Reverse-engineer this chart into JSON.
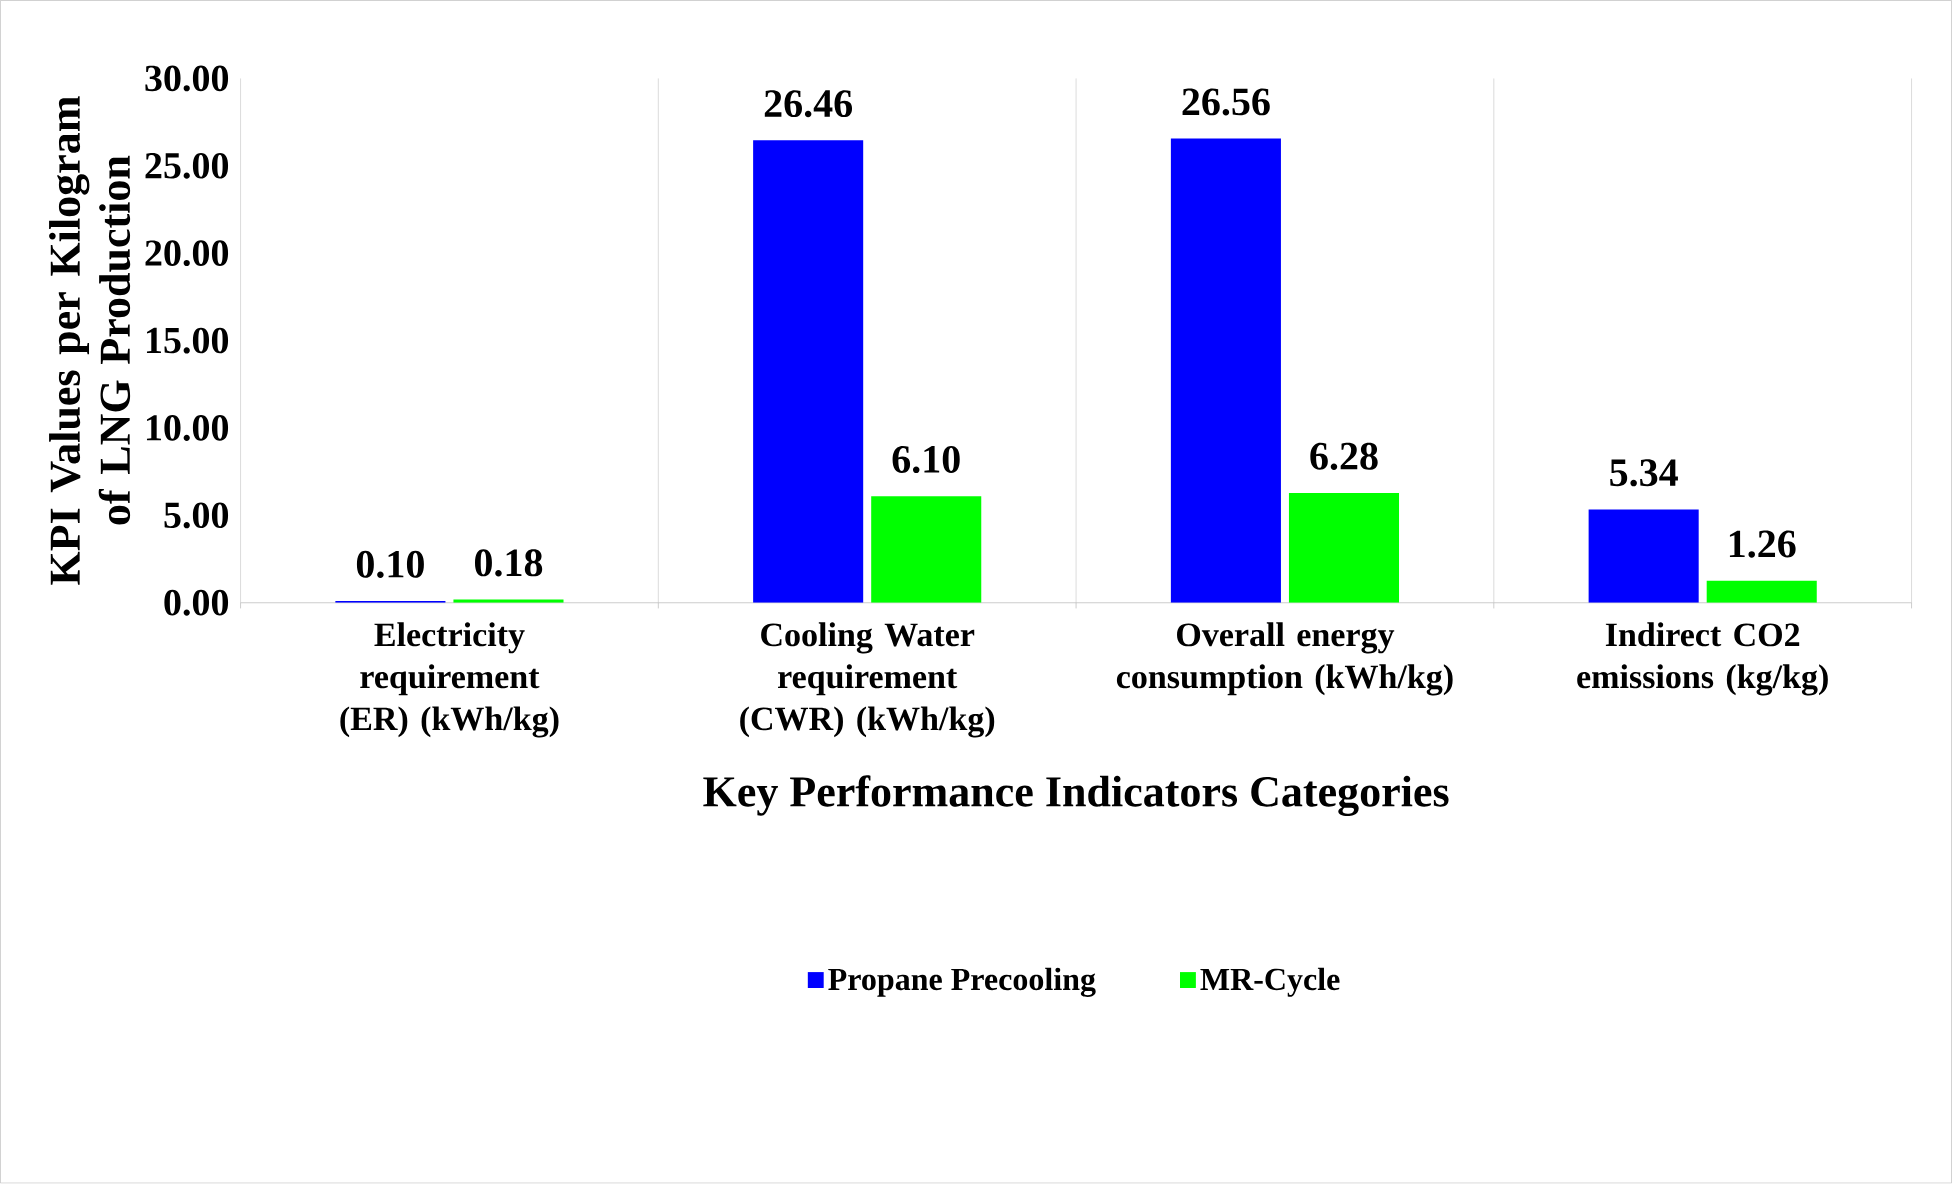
{
  "chart_data": {
    "type": "bar",
    "xlabel": "Key Performance Indicators Categories",
    "ylabel": "KPI Values per Kilogram of LNG Production",
    "categories": [
      "Electricity requirement (ER) (kWh/kg)",
      "Cooling Water requirement (CWR) (kWh/kg)",
      "Overall energy consumption (kWh/kg)",
      "Indirect CO2 emissions (kg/kg)"
    ],
    "series": [
      {
        "name": "Propane Precooling",
        "color": "#0000ff",
        "values": [
          0.1,
          26.46,
          26.56,
          5.34
        ],
        "value_labels": [
          "0.10",
          "26.46",
          "26.56",
          "5.34"
        ]
      },
      {
        "name": "MR-Cycle",
        "color": "#00ff00",
        "values": [
          0.18,
          6.1,
          6.28,
          1.26
        ],
        "value_labels": [
          "0.18",
          "6.10",
          "6.28",
          "1.26"
        ]
      }
    ],
    "ylim": [
      0,
      30
    ],
    "yticks": [
      {
        "value": 0,
        "label": "0.00"
      },
      {
        "value": 5,
        "label": "5.00"
      },
      {
        "value": 10,
        "label": "10.00"
      },
      {
        "value": 15,
        "label": "15.00"
      },
      {
        "value": 20,
        "label": "20.00"
      },
      {
        "value": 25,
        "label": "25.00"
      },
      {
        "value": 30,
        "label": "30.00"
      }
    ],
    "grid": "x",
    "legend": "bottom"
  }
}
